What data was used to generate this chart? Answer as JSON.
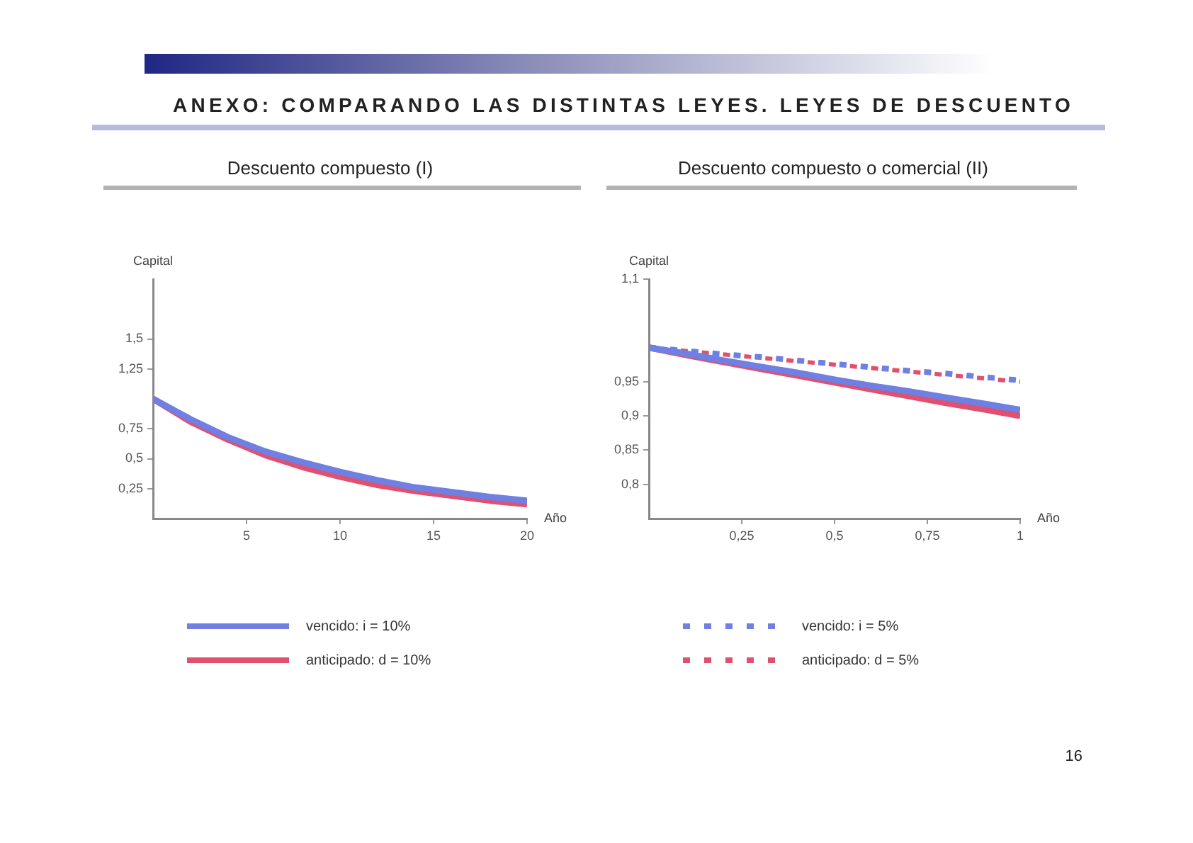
{
  "chart_data": [
    {
      "type": "line",
      "title": "ANEXO: COMPARANDO LAS DISTINTAS LEYES. LEYES DE DESCUENTO",
      "subtitle": "Descuento compuesto (I)",
      "xlabel": "Año",
      "ylabel": "Capital",
      "x": [
        0,
        2,
        4,
        6,
        8,
        10,
        12,
        14,
        16,
        18,
        20
      ],
      "series": [
        {
          "name": "vencido: i = 10%",
          "color": "#6f7fe2",
          "values": [
            1,
            0.83,
            0.68,
            0.56,
            0.47,
            0.39,
            0.32,
            0.26,
            0.22,
            0.18,
            0.15
          ]
        },
        {
          "name": "anticipado: d = 10%",
          "color": "#e0506f",
          "values": [
            1,
            0.81,
            0.66,
            0.53,
            0.43,
            0.35,
            0.28,
            0.23,
            0.19,
            0.15,
            0.12
          ]
        }
      ],
      "xlim": [
        0,
        20
      ],
      "xticks": [
        5,
        10,
        15,
        20
      ],
      "ylim": [
        0,
        2
      ],
      "yticks": [
        {
          "value": 0.25,
          "label": "0,25"
        },
        {
          "value": 0.5,
          "label": "0,5"
        },
        {
          "value": 0.75,
          "label": "0,75"
        },
        {
          "value": 1.25,
          "label": "1,25"
        },
        {
          "value": 1.5,
          "label": "1,5"
        }
      ],
      "legend": "bottom"
    },
    {
      "type": "line",
      "subtitle": "Descuento compuesto o comercial (II)",
      "xlabel": "Año",
      "ylabel": "Capital",
      "x": [
        0,
        0.1,
        0.2,
        0.3,
        0.4,
        0.5,
        0.6,
        0.7,
        0.8,
        0.9,
        1
      ],
      "series": [
        {
          "color": "#6f7fe2",
          "values": [
            1,
            0.991,
            0.981,
            0.972,
            0.963,
            0.953,
            0.944,
            0.936,
            0.927,
            0.918,
            0.909
          ]
        },
        {
          "color": "#e0506f",
          "values": [
            1,
            0.989,
            0.979,
            0.969,
            0.959,
            0.949,
            0.939,
            0.929,
            0.919,
            0.91,
            0.9
          ]
        },
        {
          "name": "vencido: i = 5%",
          "color": "#6f7fe2",
          "line_style": "dashed",
          "values": [
            1,
            0.995,
            0.99,
            0.986,
            0.981,
            0.976,
            0.971,
            0.966,
            0.962,
            0.957,
            0.952
          ]
        },
        {
          "name": "anticipado: d = 5%",
          "color": "#e0506f",
          "line_style": "dashed",
          "values": [
            1,
            0.995,
            0.99,
            0.985,
            0.98,
            0.975,
            0.97,
            0.965,
            0.96,
            0.955,
            0.95
          ]
        }
      ],
      "xlim": [
        0,
        1
      ],
      "xticks": [
        {
          "value": 0.25,
          "label": "0,25"
        },
        {
          "value": 0.5,
          "label": "0,5"
        },
        {
          "value": 0.75,
          "label": "0,75"
        },
        1
      ],
      "ylim": [
        0.75,
        1.1
      ],
      "yticks": [
        {
          "value": 0.8,
          "label": "0,8"
        },
        {
          "value": 0.85,
          "label": "0,85"
        },
        {
          "value": 0.9,
          "label": "0,9"
        },
        {
          "value": 0.95,
          "label": "0,95"
        },
        {
          "value": 1.1,
          "label": "1,1"
        }
      ],
      "legend": "bottom",
      "annotations": [
        "16"
      ]
    }
  ]
}
